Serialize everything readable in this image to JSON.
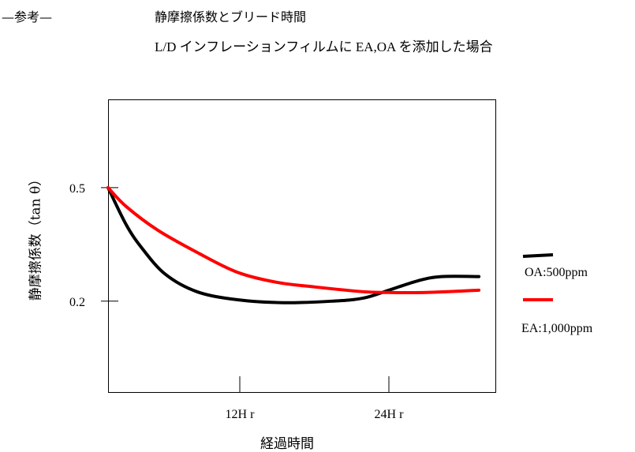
{
  "header": {
    "reference": "—参考—",
    "title": "静摩擦係数とブリード時間",
    "subtitle": "L/D インフレーションフィルムに EA,OA を添加した場合"
  },
  "chart_data": {
    "type": "line",
    "title": "静摩擦係数とブリード時間",
    "xlabel": "経過時間",
    "ylabel": "静摩擦係数（tan θ）",
    "xlim": [
      0,
      33
    ],
    "ylim": [
      -0.04,
      0.733
    ],
    "xticks": [
      {
        "value": 12,
        "label": "12H r"
      },
      {
        "value": 24,
        "label": "24H r"
      }
    ],
    "yticks": [
      {
        "value": 0.5,
        "label": "0.5"
      },
      {
        "value": 0.2,
        "label": "0.2"
      }
    ],
    "legend_position": "right",
    "series": [
      {
        "name": "OA:500ppm",
        "color": "#000000",
        "x": [
          0,
          1.55,
          2.9,
          4.9,
          7.6,
          11.0,
          15.0,
          19.1,
          21.8,
          24.0,
          26.5,
          28.5,
          31.7
        ],
        "y": [
          0.5,
          0.402,
          0.34,
          0.271,
          0.225,
          0.204,
          0.196,
          0.2,
          0.208,
          0.229,
          0.254,
          0.265,
          0.265
        ]
      },
      {
        "name": "EA:1,000ppm",
        "color": "#ff0000",
        "x": [
          0,
          1.55,
          4.25,
          7.6,
          11.0,
          14.4,
          17.7,
          21.8,
          24.0,
          27.2,
          31.7
        ],
        "y": [
          0.5,
          0.45,
          0.3875,
          0.329,
          0.277,
          0.25,
          0.2375,
          0.225,
          0.223,
          0.223,
          0.229
        ]
      }
    ]
  }
}
